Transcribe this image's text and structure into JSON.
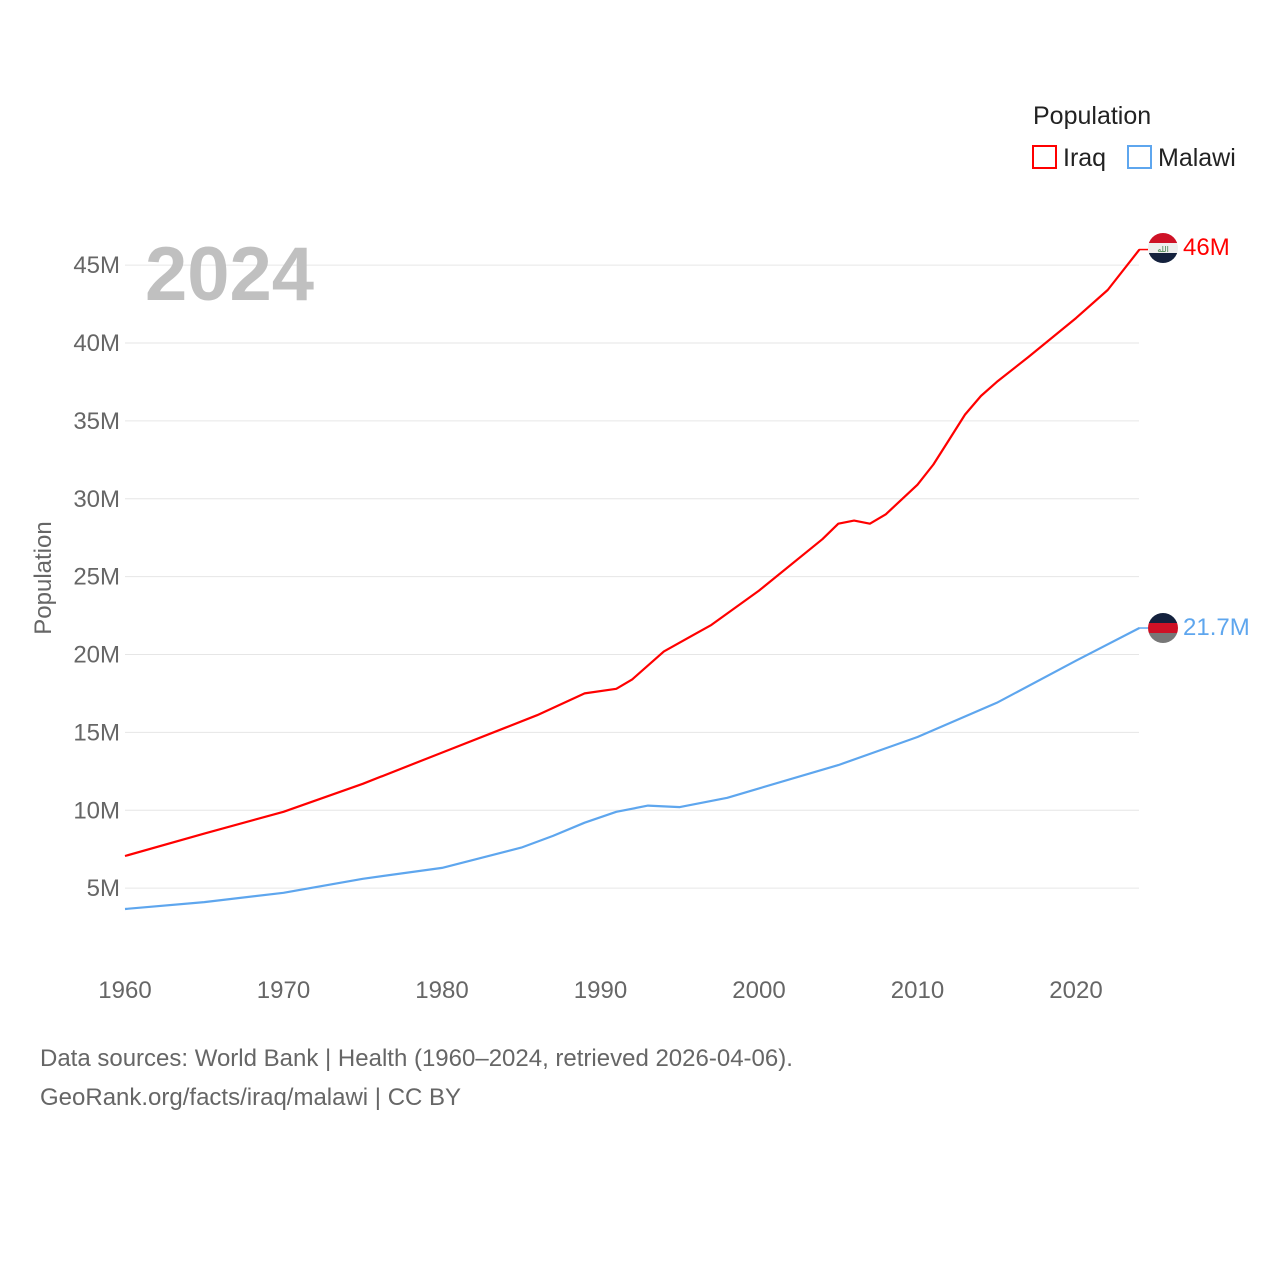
{
  "chart_data": {
    "type": "line",
    "title": "",
    "year_label": "2024",
    "xlabel": "",
    "ylabel": "Population",
    "xlim": [
      1960,
      2024
    ],
    "ylim": [
      0,
      47
    ],
    "x_ticks": [
      "1960",
      "1970",
      "1980",
      "1990",
      "2000",
      "2010",
      "2020"
    ],
    "x_tick_values": [
      1960,
      1970,
      1980,
      1990,
      2000,
      2010,
      2020
    ],
    "y_ticks": [
      "5M",
      "10M",
      "15M",
      "20M",
      "25M",
      "30M",
      "35M",
      "40M",
      "45M"
    ],
    "y_tick_values": [
      5,
      10,
      15,
      20,
      25,
      30,
      35,
      40,
      45
    ],
    "grid": true,
    "legend": {
      "title": "Population",
      "placement": "top-right"
    },
    "series": [
      {
        "name": "Iraq",
        "color": "#ff0000",
        "end_label": "46M",
        "flag": "iraq-flag",
        "x": [
          1960,
          1965,
          1970,
          1975,
          1980,
          1984,
          1986,
          1989,
          1991,
          1992,
          1994,
          1997,
          2000,
          2004,
          2005,
          2006,
          2007,
          2008,
          2010,
          2011,
          2012,
          2013,
          2014,
          2015,
          2017,
          2020,
          2022,
          2024
        ],
        "values": [
          7.06,
          8.5,
          9.9,
          11.7,
          13.7,
          15.3,
          16.1,
          17.5,
          17.8,
          18.4,
          20.2,
          21.9,
          24.1,
          27.4,
          28.4,
          28.6,
          28.4,
          29.0,
          30.9,
          32.2,
          33.8,
          35.4,
          36.6,
          37.5,
          39.1,
          41.6,
          43.4,
          46.0
        ]
      },
      {
        "name": "Malawi",
        "color": "#5ea6ee",
        "end_label": "21.7M",
        "flag": "malawi-flag",
        "x": [
          1960,
          1965,
          1970,
          1975,
          1980,
          1985,
          1987,
          1989,
          1991,
          1993,
          1995,
          1998,
          2000,
          2005,
          2010,
          2015,
          2020,
          2024
        ],
        "values": [
          3.66,
          4.1,
          4.7,
          5.6,
          6.3,
          7.6,
          8.35,
          9.2,
          9.9,
          10.3,
          10.2,
          10.8,
          11.4,
          12.9,
          14.7,
          16.9,
          19.6,
          21.7
        ]
      }
    ]
  },
  "footer": {
    "line1": "Data sources: World Bank | Health (1960–2024, retrieved 2026-04-06).",
    "line2": "GeoRank.org/facts/iraq/malawi | CC BY"
  }
}
